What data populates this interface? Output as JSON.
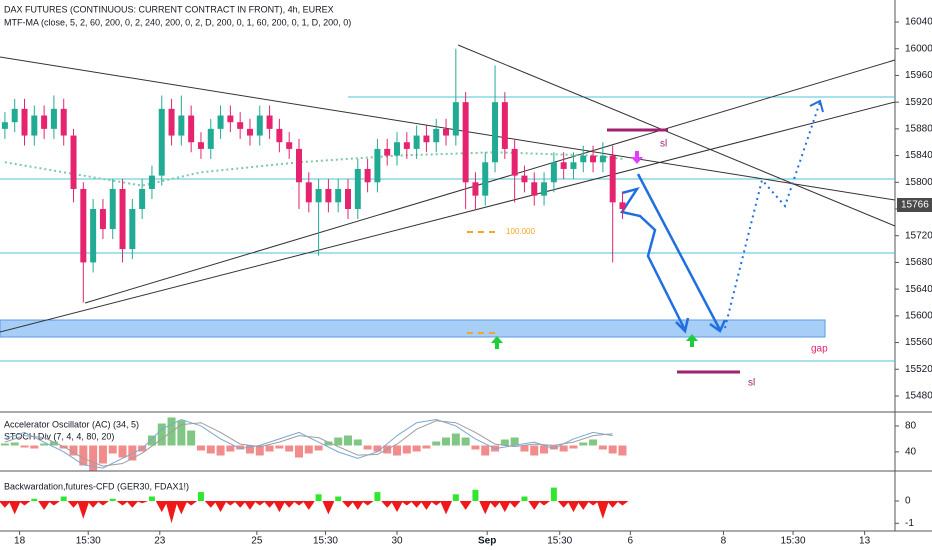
{
  "chart_data": [
    {
      "type": "candlestick",
      "title": "DAX FUTURES (CONTINUOUS: CURRENT CONTRACT IN FRONT), 4h, EUREX",
      "subtitle": "MTF-MA (close, 5, 2, 60, 200, 0, 2, 240, 200, 0, 2, D, 200, 0, 1, 60, 200, 0, 1, D, 200, 0)",
      "up_color": "#22ab94",
      "down_color": "#e6236e",
      "xlim": [
        -0.5,
        90.8
      ],
      "xticks": [
        {
          "value": 1.5,
          "label": "18"
        },
        {
          "value": 8.5,
          "label": "15:30"
        },
        {
          "value": 15.8,
          "label": "23"
        },
        {
          "value": 25.7,
          "label": "25"
        },
        {
          "value": 32.7,
          "label": "15:30"
        },
        {
          "value": 40,
          "label": "30"
        },
        {
          "value": 49.2,
          "label": "Sep"
        },
        {
          "value": 56.6,
          "label": "15:30"
        },
        {
          "value": 63.8,
          "label": "6"
        },
        {
          "value": 73.3,
          "label": "8"
        },
        {
          "value": 80.4,
          "label": "15:30"
        },
        {
          "value": 87.7,
          "label": "13"
        }
      ],
      "ylim": [
        15456,
        16073
      ],
      "yticks": [
        15480,
        15520,
        15560,
        15600,
        15640,
        15680,
        15720,
        15760,
        15800,
        15840,
        15880,
        15920,
        15960,
        16000,
        16040
      ],
      "open": [
        15880,
        15890,
        15910,
        15870,
        15900,
        15880,
        15910,
        15870,
        15790,
        15680,
        15760,
        15730,
        15790,
        15700,
        15760,
        15790,
        15810,
        15910,
        15870,
        15900,
        15860,
        15850,
        15880,
        15900,
        15890,
        15880,
        15870,
        15900,
        15880,
        15860,
        15850,
        15800,
        15770,
        15790,
        15770,
        15790,
        15760,
        15820,
        15800,
        15850,
        15840,
        15860,
        15850,
        15870,
        15860,
        15880,
        15870,
        15920,
        15800,
        15780,
        15830,
        15920,
        15850,
        15810,
        15800,
        15780,
        15800,
        15830,
        15820,
        15830,
        15840,
        15830,
        15840,
        15770
      ],
      "high": [
        15905,
        15925,
        15925,
        15915,
        15915,
        15930,
        15925,
        15880,
        15800,
        15775,
        15775,
        15805,
        15805,
        15775,
        15805,
        15825,
        15930,
        15925,
        15930,
        15915,
        15875,
        15895,
        15915,
        15915,
        15905,
        15895,
        15915,
        15915,
        15895,
        15875,
        15865,
        15815,
        15805,
        15805,
        15805,
        15805,
        15835,
        15835,
        15865,
        15865,
        15875,
        15875,
        15885,
        15885,
        15895,
        15895,
        16000,
        15935,
        15815,
        15845,
        15975,
        15935,
        15865,
        15825,
        15815,
        15815,
        15845,
        15845,
        15845,
        15855,
        15855,
        15860,
        15855,
        15785
      ],
      "low": [
        15865,
        15875,
        15855,
        15855,
        15865,
        15865,
        15855,
        15770,
        15620,
        15665,
        15715,
        15715,
        15680,
        15685,
        15745,
        15775,
        15795,
        15855,
        15855,
        15845,
        15835,
        15835,
        15865,
        15875,
        15865,
        15855,
        15855,
        15865,
        15845,
        15835,
        15760,
        15755,
        15690,
        15755,
        15755,
        15745,
        15745,
        15785,
        15785,
        15825,
        15825,
        15835,
        15835,
        15845,
        15845,
        15855,
        15855,
        15760,
        15760,
        15765,
        15815,
        15835,
        15770,
        15785,
        15765,
        15765,
        15785,
        15805,
        15805,
        15815,
        15815,
        15815,
        15680,
        15745
      ],
      "close": [
        15890,
        15910,
        15870,
        15900,
        15880,
        15910,
        15870,
        15790,
        15680,
        15760,
        15730,
        15790,
        15700,
        15760,
        15790,
        15810,
        15910,
        15870,
        15900,
        15860,
        15850,
        15880,
        15900,
        15890,
        15880,
        15870,
        15900,
        15880,
        15860,
        15850,
        15800,
        15770,
        15790,
        15770,
        15790,
        15760,
        15820,
        15800,
        15850,
        15840,
        15860,
        15850,
        15870,
        15860,
        15880,
        15870,
        15920,
        15800,
        15780,
        15830,
        15920,
        15850,
        15810,
        15800,
        15780,
        15800,
        15830,
        15820,
        15830,
        15840,
        15830,
        15840,
        15770,
        15760
      ],
      "ma_color": "#7fc8a0",
      "ma_x": [
        0,
        8,
        14,
        20,
        30,
        40,
        50,
        60,
        63
      ],
      "ma_values": [
        15830,
        15810,
        15795,
        15815,
        15830,
        15840,
        15845,
        15840,
        15835
      ],
      "last_price": 15766,
      "annotations": [
        "sl",
        "sl",
        "gap",
        "100.000"
      ]
    },
    {
      "type": "oscillator",
      "title": "Accelerator Oscillator (AC) (34, 5)",
      "subtitle": "STOCH Div (7, 4, 4, 80, 20)",
      "ylim": [
        12,
        100
      ],
      "yticks": [
        80,
        40
      ],
      "ac_values": [
        2,
        3,
        -2,
        -3,
        2,
        4,
        -3,
        -10,
        -20,
        -25,
        -18,
        -8,
        -12,
        -15,
        -6,
        10,
        22,
        28,
        25,
        15,
        -5,
        -8,
        -10,
        -6,
        -4,
        -8,
        -10,
        -6,
        -3,
        -6,
        -12,
        -8,
        -5,
        4,
        8,
        10,
        6,
        -4,
        -6,
        -8,
        -10,
        -8,
        -6,
        -3,
        4,
        8,
        12,
        8,
        -4,
        -10,
        -6,
        6,
        8,
        -6,
        -10,
        -8,
        -4,
        -6,
        -3,
        3,
        6,
        -4,
        -8,
        -10
      ],
      "pos_color": "#81c784",
      "neg_color": "#f28b8b",
      "stoch_x": [
        0,
        2,
        4,
        6,
        8,
        10,
        12,
        14,
        16,
        18,
        20,
        22,
        24,
        26,
        28,
        30,
        32,
        34,
        36,
        38,
        40,
        42,
        44,
        46,
        48,
        50,
        52,
        54,
        56,
        58,
        60,
        62
      ],
      "stoch_k": [
        60,
        70,
        55,
        40,
        20,
        15,
        30,
        45,
        75,
        90,
        80,
        60,
        45,
        50,
        60,
        70,
        55,
        40,
        30,
        40,
        65,
        85,
        90,
        80,
        60,
        45,
        50,
        55,
        45,
        60,
        70,
        65
      ],
      "stoch_d": [
        55,
        65,
        62,
        48,
        30,
        18,
        22,
        38,
        60,
        82,
        85,
        70,
        52,
        48,
        55,
        65,
        62,
        48,
        35,
        36,
        52,
        75,
        88,
        85,
        70,
        52,
        48,
        52,
        50,
        55,
        65,
        68
      ],
      "k_color": "#7aa6d6",
      "d_color": "#9e9e9e"
    },
    {
      "type": "histogram",
      "title": "Backwardation,futures-CFD (GER30, FDAX1!)",
      "ylim": [
        -1.3,
        1.3
      ],
      "yticks": [
        0,
        -1
      ],
      "values": [
        -0.3,
        -0.6,
        -0.2,
        0.1,
        -0.4,
        -0.2,
        0.2,
        -0.3,
        -0.8,
        -0.3,
        -0.2,
        0.1,
        -0.2,
        -0.3,
        -0.1,
        0.2,
        -0.5,
        -1.0,
        -0.6,
        -0.2,
        0.4,
        -0.3,
        -0.5,
        -0.2,
        -0.3,
        -0.4,
        -0.2,
        -0.3,
        -0.5,
        -0.3,
        -0.2,
        -0.4,
        0.3,
        -0.6,
        0.2,
        -0.3,
        -0.4,
        -0.2,
        0.4,
        -0.3,
        -0.5,
        -0.2,
        -0.3,
        -0.4,
        -0.2,
        -0.6,
        0.3,
        -0.4,
        0.5,
        -0.6,
        -0.3,
        -0.5,
        -0.3,
        0.2,
        -0.4,
        -0.2,
        0.6,
        -0.3,
        -0.5,
        -0.4,
        -0.2,
        -0.8,
        -0.3,
        -0.2
      ],
      "pos_color": "#2ee82e",
      "neg_color": "#f01818"
    }
  ]
}
